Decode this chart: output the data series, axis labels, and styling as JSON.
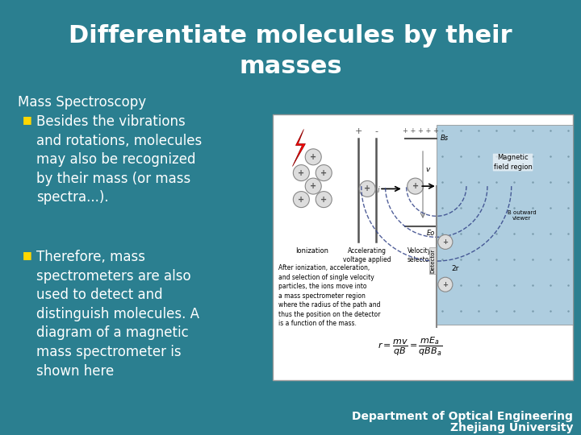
{
  "title_line1": "Differentiate molecules by their",
  "title_line2": "masses",
  "title_color": "#FFFFFF",
  "title_fontsize": 22,
  "background_color": "#2B7F90",
  "subtitle": "Mass Spectroscopy",
  "subtitle_color": "#FFFFFF",
  "subtitle_fontsize": 12,
  "bullet_color": "#FFD700",
  "bullet_text_color": "#FFFFFF",
  "bullet_fontsize": 12,
  "bullet1": "Besides the vibrations\nand rotations, molecules\nmay also be recognized\nby their mass (or mass\nspectra...).",
  "bullet2": "Therefore, mass\nspectrometers are also\nused to detect and\ndistinguish molecules. A\ndiagram of a magnetic\nmass spectrometer is\nshown here",
  "footer1": "Department of Optical Engineering",
  "footer2": "Zhejiang University",
  "footer_color": "#FFFFFF",
  "footer_fontsize": 10
}
